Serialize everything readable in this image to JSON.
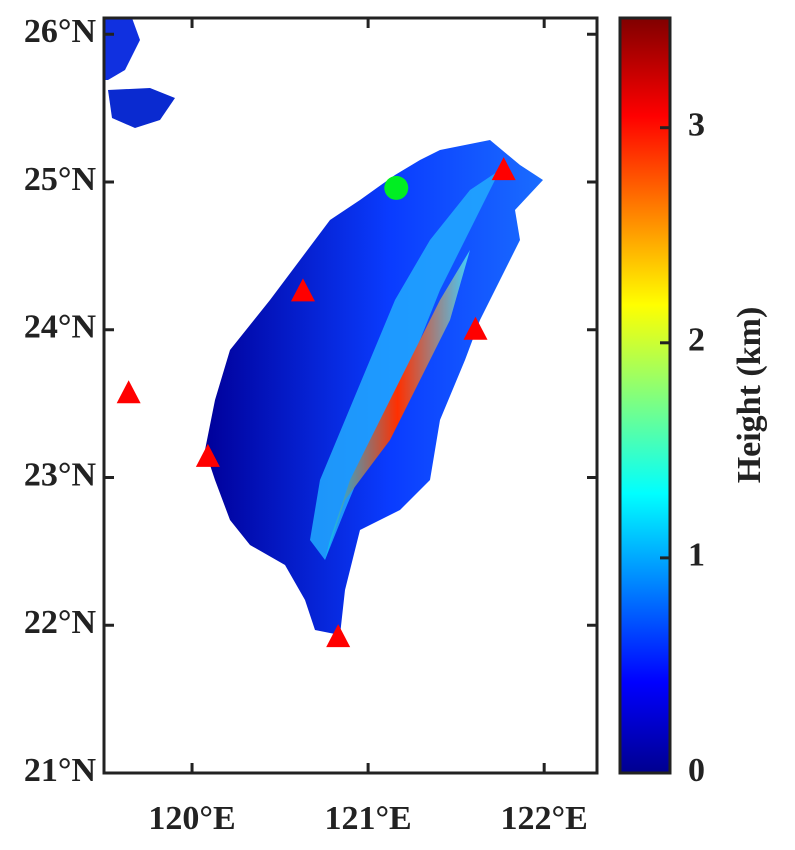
{
  "map": {
    "xlim": [
      119.5,
      122.3
    ],
    "ylim": [
      21,
      26.11
    ],
    "xticks": [
      {
        "value": 120,
        "label": "120°E"
      },
      {
        "value": 121,
        "label": "121°E"
      },
      {
        "value": 122,
        "label": "122°E"
      }
    ],
    "yticks": [
      {
        "value": 21,
        "label": "21°N"
      },
      {
        "value": 22,
        "label": "22°N"
      },
      {
        "value": 23,
        "label": "23°N"
      },
      {
        "value": 24,
        "label": "24°N"
      },
      {
        "value": 25,
        "label": "25°N"
      },
      {
        "value": 26,
        "label": "26°N"
      }
    ],
    "markers": [
      {
        "shape": "triangle",
        "color": "#ff0000",
        "lon": 119.64,
        "lat": 23.57
      },
      {
        "shape": "triangle",
        "color": "#ff0000",
        "lon": 120.09,
        "lat": 23.14
      },
      {
        "shape": "triangle",
        "color": "#ff0000",
        "lon": 120.63,
        "lat": 24.26
      },
      {
        "shape": "triangle",
        "color": "#ff0000",
        "lon": 120.83,
        "lat": 21.92
      },
      {
        "shape": "triangle",
        "color": "#ff0000",
        "lon": 121.61,
        "lat": 24.0
      },
      {
        "shape": "triangle",
        "color": "#ff0000",
        "lon": 121.77,
        "lat": 25.08
      },
      {
        "shape": "circle",
        "color": "#00ee22",
        "lon": 121.16,
        "lat": 24.96
      }
    ],
    "colorbar": {
      "label": "Height (km)",
      "clim": [
        0,
        3.51
      ],
      "ticks": [
        0,
        1,
        2,
        3
      ]
    }
  }
}
